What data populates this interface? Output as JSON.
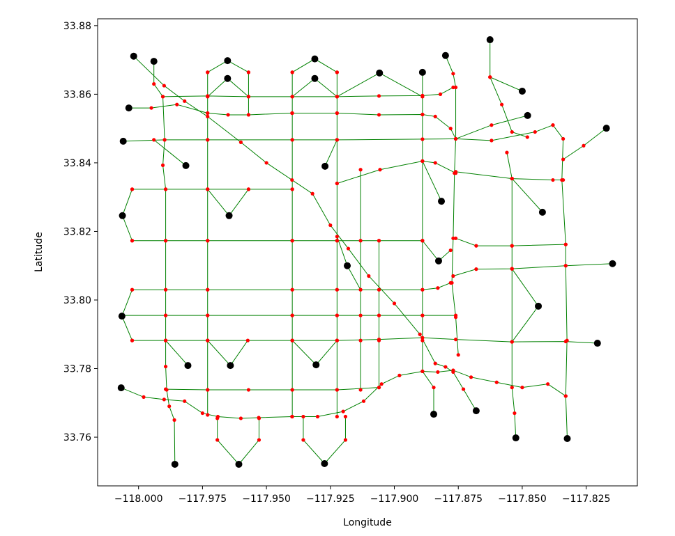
{
  "chart_data": {
    "type": "network",
    "xlabel": "Longitude",
    "ylabel": "Latitude",
    "xlim": [
      -118.016,
      -117.805
    ],
    "ylim": [
      33.7458,
      33.882
    ],
    "xticks": [
      {
        "value": -118.0,
        "label": "−118.000"
      },
      {
        "value": -117.975,
        "label": "−117.975"
      },
      {
        "value": -117.95,
        "label": "−117.950"
      },
      {
        "value": -117.925,
        "label": "−117.925"
      },
      {
        "value": -117.9,
        "label": "−117.900"
      },
      {
        "value": -117.875,
        "label": "−117.875"
      },
      {
        "value": -117.85,
        "label": "−117.850"
      },
      {
        "value": -117.825,
        "label": "−117.825"
      }
    ],
    "yticks": [
      33.76,
      33.78,
      {
        "value": 33.8,
        "label": "33.80"
      },
      33.82,
      33.84,
      33.86,
      33.88
    ],
    "edge_color": "#008000",
    "node_color": "#ff0000",
    "terminal_color": "#000000",
    "roads": [
      {
        "x": [
          -117.994,
          -117.994,
          -117.9905,
          -117.9898,
          -117.9905,
          -117.9894,
          -117.9894,
          -117.9894,
          -117.9894,
          -117.9894,
          -117.9894,
          -117.989,
          -117.988,
          -117.986,
          -117.9858
        ],
        "y": [
          33.8696,
          33.863,
          33.8593,
          33.8467,
          33.8393,
          33.8323,
          33.8173,
          33.803,
          33.7955,
          33.7882,
          33.7806,
          33.7738,
          33.769,
          33.765,
          33.7521
        ]
      },
      {
        "x": [
          -117.973,
          -117.973,
          -117.973,
          -117.973,
          -117.973,
          -117.973,
          -117.973,
          -117.973,
          -117.973,
          -117.973,
          -117.973
        ],
        "y": [
          33.8664,
          33.8593,
          33.8545,
          33.8467,
          33.8323,
          33.8173,
          33.803,
          33.7955,
          33.7882,
          33.7738,
          33.7665
        ]
      },
      {
        "x": [
          -117.957,
          -117.957,
          -117.957
        ],
        "y": [
          33.8664,
          33.8593,
          33.854
        ]
      },
      {
        "x": [
          -117.9399,
          -117.9399,
          -117.9399,
          -117.9399,
          -117.9399,
          -117.9399,
          -117.9399,
          -117.9399,
          -117.9399,
          -117.9399,
          -117.9399
        ],
        "y": [
          33.8664,
          33.8593,
          33.8545,
          33.8467,
          33.8323,
          33.8173,
          33.803,
          33.7955,
          33.7882,
          33.7738,
          33.766
        ]
      },
      {
        "x": [
          -117.9224,
          -117.9224,
          -117.9224,
          -117.9224,
          -117.9224,
          -117.9224,
          -117.9224,
          -117.9224,
          -117.9224,
          -117.9224,
          -117.9224
        ],
        "y": [
          33.8664,
          33.8593,
          33.8545,
          33.8467,
          33.834,
          33.8173,
          33.803,
          33.7955,
          33.7882,
          33.7738,
          33.766
        ]
      },
      {
        "x": [
          -117.906,
          -117.906,
          -117.906,
          -117.906,
          -117.906
        ],
        "y": [
          33.8173,
          33.803,
          33.7955,
          33.7882,
          33.7745
        ]
      },
      {
        "x": [
          -117.9132,
          -117.9132,
          -117.9132,
          -117.9132,
          -117.9132,
          -117.9132
        ],
        "y": [
          33.838,
          33.8173,
          33.803,
          33.7955,
          33.7882,
          33.7738
        ]
      },
      {
        "x": [
          -117.889,
          -117.889,
          -117.889,
          -117.889,
          -117.889,
          -117.889,
          -117.889,
          -117.889,
          -117.889,
          -117.889
        ],
        "y": [
          33.8664,
          33.8593,
          33.8541,
          33.8469,
          33.8405,
          33.8173,
          33.803,
          33.7955,
          33.7882,
          33.7792
        ]
      },
      {
        "x": [
          -117.88,
          -117.877,
          -117.876,
          -117.876,
          -117.8765,
          -117.877,
          -117.8775,
          -117.876,
          -117.875
        ],
        "y": [
          33.8713,
          33.866,
          33.862,
          33.847,
          33.837,
          33.818,
          33.805,
          33.795,
          33.784
        ]
      },
      {
        "x": [
          -117.856,
          -117.854,
          -117.854,
          -117.854,
          -117.854,
          -117.854,
          -117.853,
          -117.8525
        ],
        "y": [
          33.843,
          33.8354,
          33.8158,
          33.8091,
          33.7878,
          33.7745,
          33.767,
          33.7598
        ]
      },
      {
        "x": [
          -117.838,
          -117.834,
          -117.8345,
          -117.833,
          -117.833,
          -117.8325,
          -117.833,
          -117.8324
        ],
        "y": [
          33.851,
          33.847,
          33.835,
          33.8162,
          33.81,
          33.7882,
          33.772,
          33.7596
        ]
      },
      {
        "x": [
          -117.973,
          -117.9652,
          -117.957
        ],
        "y": [
          33.8664,
          33.8698,
          33.8664
        ]
      },
      {
        "x": [
          -117.973,
          -117.9652,
          -117.957
        ],
        "y": [
          33.8593,
          33.8646,
          33.8593
        ]
      },
      {
        "x": [
          -117.9399,
          -117.9311,
          -117.9224
        ],
        "y": [
          33.8664,
          33.8703,
          33.8664
        ]
      },
      {
        "x": [
          -117.9399,
          -117.9311,
          -117.9224
        ],
        "y": [
          33.8593,
          33.8646,
          33.8593
        ]
      },
      {
        "x": [
          -117.9692,
          -117.9692,
          -117.9608,
          -117.9529,
          -117.9529
        ],
        "y": [
          33.7655,
          33.7592,
          33.7521,
          33.7592,
          33.7655
        ]
      },
      {
        "x": [
          -117.9356,
          -117.9356,
          -117.9273,
          -117.9191,
          -117.9191
        ],
        "y": [
          33.766,
          33.7592,
          33.7523,
          33.7592,
          33.766
        ]
      },
      {
        "x": [
          -117.973,
          -117.9641,
          -117.9573
        ],
        "y": [
          33.7882,
          33.7809,
          33.7882
        ]
      },
      {
        "x": [
          -117.9399,
          -117.9306,
          -117.9224
        ],
        "y": [
          33.7882,
          33.7811,
          33.7882
        ]
      },
      {
        "x": [
          -117.9894,
          -117.9807
        ],
        "y": [
          33.7882,
          33.7809
        ]
      },
      {
        "x": [
          -118.0025,
          -118.0063,
          -118.0025
        ],
        "y": [
          33.8323,
          33.8246,
          33.8173
        ]
      },
      {
        "x": [
          -118.0025,
          -118.0065,
          -118.0025
        ],
        "y": [
          33.803,
          33.7953,
          33.7882
        ]
      },
      {
        "x": [
          -117.973,
          -117.9646,
          -117.957
        ],
        "y": [
          33.8323,
          33.8246,
          33.8323
        ]
      },
      {
        "x": [
          -117.994,
          -117.9815
        ],
        "y": [
          33.8467,
          33.8392
        ]
      },
      {
        "x": [
          -117.9905,
          -117.973,
          -117.957,
          -117.9399,
          -117.9224,
          -117.906,
          -117.889,
          -117.882,
          -117.877
        ],
        "y": [
          33.8593,
          33.8595,
          33.8593,
          33.8593,
          33.8593,
          33.8595,
          33.8596,
          33.86,
          33.862
        ]
      },
      {
        "x": [
          -118.006,
          -117.9898,
          -117.973,
          -117.9399,
          -117.9224,
          -117.889,
          -117.876,
          -117.862,
          -117.845,
          -117.838
        ],
        "y": [
          33.8463,
          33.8467,
          33.8467,
          33.8467,
          33.8467,
          33.8469,
          33.847,
          33.8465,
          33.849,
          33.851
        ]
      },
      {
        "x": [
          -118.0025,
          -117.9894,
          -117.973,
          -117.957,
          -117.9399
        ],
        "y": [
          33.8323,
          33.8323,
          33.8323,
          33.8323,
          33.8323
        ]
      },
      {
        "x": [
          -118.0025,
          -117.9894,
          -117.973,
          -117.9399,
          -117.9224,
          -117.906,
          -117.889
        ],
        "y": [
          33.8173,
          33.8173,
          33.8173,
          33.8173,
          33.8173,
          33.8173,
          33.8173
        ]
      },
      {
        "x": [
          -118.0025,
          -117.9894,
          -117.973,
          -117.9399,
          -117.9224,
          -117.906,
          -117.889,
          -117.883,
          -117.878
        ],
        "y": [
          33.803,
          33.803,
          33.803,
          33.803,
          33.803,
          33.803,
          33.803,
          33.8035,
          33.805
        ]
      },
      {
        "x": [
          -118.0065,
          -117.9894,
          -117.973,
          -117.9399,
          -117.9224,
          -117.906,
          -117.889,
          -117.876
        ],
        "y": [
          33.7955,
          33.7955,
          33.7955,
          33.7955,
          33.7955,
          33.7955,
          33.7955,
          33.7955
        ]
      },
      {
        "x": [
          -118.0025,
          -117.9894,
          -117.973,
          -117.9399,
          -117.9224,
          -117.906,
          -117.889,
          -117.876,
          -117.854,
          -117.833,
          -117.8206
        ],
        "y": [
          33.7882,
          33.7882,
          33.7882,
          33.7882,
          33.7882,
          33.7885,
          33.789,
          33.7885,
          33.7878,
          33.7879,
          33.7874
        ]
      },
      {
        "x": [
          -117.9894,
          -117.973,
          -117.957,
          -117.9399,
          -117.9224,
          -117.906
        ],
        "y": [
          33.774,
          33.7738,
          33.7738,
          33.7738,
          33.7738,
          33.7745
        ]
      },
      {
        "x": [
          -117.876,
          -117.868,
          -117.854,
          -117.833
        ],
        "y": [
          33.818,
          33.8158,
          33.8158,
          33.8162
        ]
      },
      {
        "x": [
          -117.877,
          -117.868,
          -117.854,
          -117.833,
          -117.8147
        ],
        "y": [
          33.807,
          33.809,
          33.8091,
          33.81,
          33.8106
        ]
      },
      {
        "x": [
          -117.876,
          -117.854,
          -117.838,
          -117.834
        ],
        "y": [
          33.8374,
          33.8354,
          33.835,
          33.835
        ]
      },
      {
        "x": [
          -117.9224,
          -117.9056,
          -117.889,
          -117.884,
          -117.876
        ],
        "y": [
          33.834,
          33.838,
          33.8405,
          33.84,
          33.837
        ]
      },
      {
        "x": [
          -117.834,
          -117.826,
          -117.8171
        ],
        "y": [
          33.841,
          33.845,
          33.8501
        ]
      },
      {
        "x": [
          -117.854,
          -117.8421
        ],
        "y": [
          33.8354,
          33.8256
        ]
      },
      {
        "x": [
          -117.854,
          -117.8437,
          -117.854
        ],
        "y": [
          33.8091,
          33.7982,
          33.7878
        ]
      },
      {
        "x": [
          -117.8626,
          -117.8626,
          -117.858,
          -117.854,
          -117.848
        ],
        "y": [
          33.8759,
          33.865,
          33.857,
          33.849,
          33.8475
        ]
      },
      {
        "x": [
          -117.85,
          -117.8626
        ],
        "y": [
          33.8609,
          33.865
        ]
      },
      {
        "x": [
          -117.8479,
          -117.862,
          -117.876
        ],
        "y": [
          33.8538,
          33.851,
          33.847
        ]
      },
      {
        "x": [
          -117.9224,
          -117.9058,
          -117.889
        ],
        "y": [
          33.8593,
          33.8662,
          33.8593
        ]
      },
      {
        "x": [
          -118.0019,
          -117.99,
          -117.982,
          -117.973,
          -117.96,
          -117.95,
          -117.94,
          -117.932,
          -117.925,
          -117.918,
          -117.91,
          -117.9,
          -117.89,
          -117.884,
          -117.88,
          -117.877,
          -117.873,
          -117.868
        ],
        "y": [
          33.8711,
          33.8625,
          33.858,
          33.8535,
          33.846,
          33.84,
          33.835,
          33.831,
          33.8218,
          33.815,
          33.807,
          33.799,
          33.79,
          33.7815,
          33.7805,
          33.779,
          33.774,
          33.7677
        ]
      },
      {
        "x": [
          -118.0038,
          -117.995,
          -117.985,
          -117.973,
          -117.965,
          -117.957,
          -117.94,
          -117.9224,
          -117.906,
          -117.889,
          -117.884,
          -117.878,
          -117.876
        ],
        "y": [
          33.856,
          33.856,
          33.857,
          33.8545,
          33.854,
          33.854,
          33.8545,
          33.8545,
          33.854,
          33.8541,
          33.8535,
          33.85,
          33.847
        ]
      },
      {
        "x": [
          -118.0068,
          -117.998,
          -117.99,
          -117.982,
          -117.975,
          -117.969,
          -117.96,
          -117.953,
          -117.94,
          -117.93,
          -117.92,
          -117.912,
          -117.905,
          -117.898,
          -117.889,
          -117.883,
          -117.877,
          -117.87,
          -117.86,
          -117.85,
          -117.84,
          -117.833
        ],
        "y": [
          33.7744,
          33.7717,
          33.771,
          33.7705,
          33.767,
          33.766,
          33.7655,
          33.7657,
          33.766,
          33.766,
          33.7675,
          33.7705,
          33.7755,
          33.778,
          33.7792,
          33.779,
          33.7795,
          33.7775,
          33.776,
          33.7745,
          33.7755,
          33.772
        ]
      },
      {
        "x": [
          -117.8846,
          -117.8846,
          -117.889
        ],
        "y": [
          33.7667,
          33.7745,
          33.7792
        ]
      },
      {
        "x": [
          -117.9224,
          -117.9184,
          -117.9132
        ],
        "y": [
          33.8185,
          33.81,
          33.803
        ]
      },
      {
        "x": [
          -117.889,
          -117.8827,
          -117.878
        ],
        "y": [
          33.8173,
          33.8114,
          33.8145
        ]
      },
      {
        "x": [
          -117.889,
          -117.8816
        ],
        "y": [
          33.8405,
          33.8288
        ]
      },
      {
        "x": [
          -117.9224,
          -117.9271
        ],
        "y": [
          33.8467,
          33.839
        ]
      }
    ],
    "terminals": {
      "x": [
        -118.0019,
        -117.994,
        -118.0038,
        -118.006,
        -117.9815,
        -117.9652,
        -117.9652,
        -117.9311,
        -117.9311,
        -117.9058,
        -117.889,
        -117.88,
        -117.8626,
        -117.85,
        -117.8479,
        -117.8171,
        -117.9271,
        -117.8816,
        -117.8421,
        -117.9646,
        -118.0063,
        -117.9184,
        -117.8827,
        -117.8147,
        -117.8437,
        -118.0065,
        -117.8206,
        -117.9807,
        -117.9641,
        -117.9306,
        -118.0068,
        -117.8846,
        -117.868,
        -117.8525,
        -117.8324,
        -117.9858,
        -117.9608,
        -117.9273
      ],
      "y": [
        33.8711,
        33.8696,
        33.856,
        33.8463,
        33.8392,
        33.8698,
        33.8646,
        33.8703,
        33.8646,
        33.8662,
        33.8664,
        33.8713,
        33.8759,
        33.8609,
        33.8538,
        33.8501,
        33.839,
        33.8288,
        33.8256,
        33.8246,
        33.8246,
        33.81,
        33.8114,
        33.8106,
        33.7982,
        33.7953,
        33.7874,
        33.7809,
        33.7809,
        33.7811,
        33.7744,
        33.7667,
        33.7677,
        33.7598,
        33.7596,
        33.7521,
        33.7521,
        33.7523
      ]
    }
  }
}
